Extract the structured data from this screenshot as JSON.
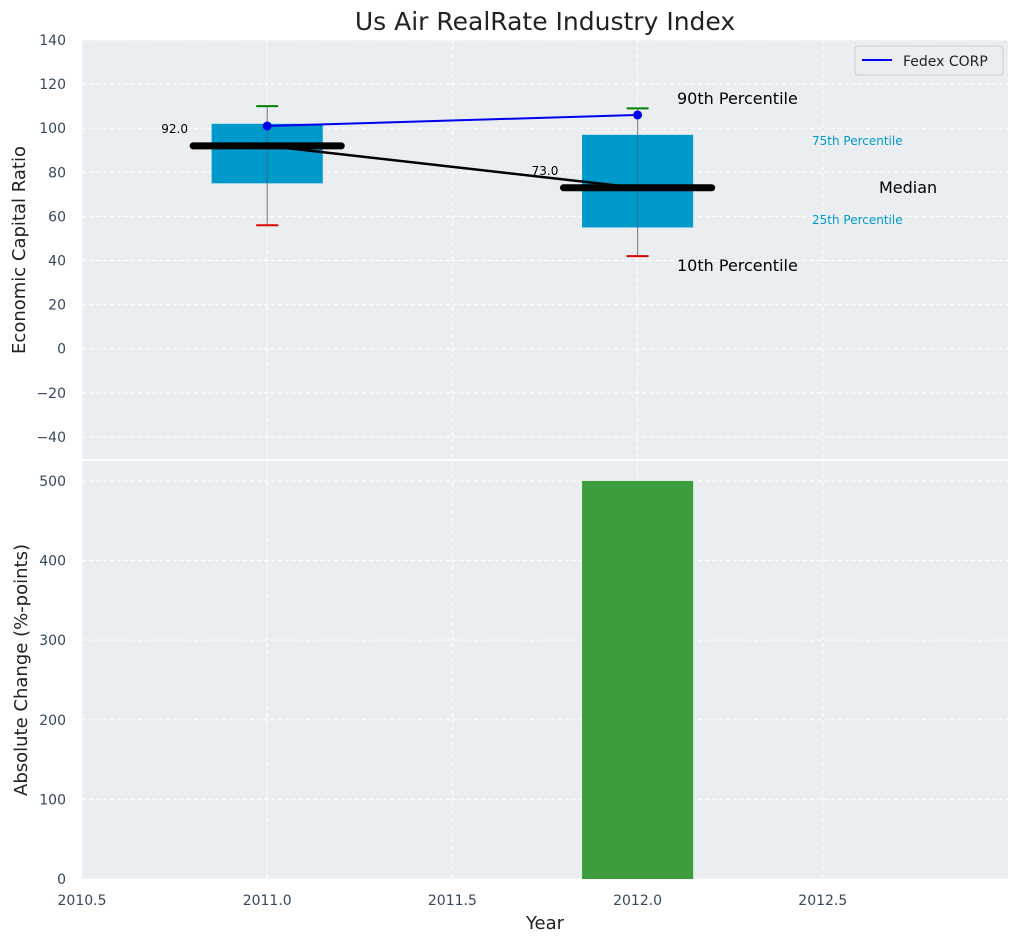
{
  "chart_data": [
    {
      "type": "box",
      "title": "Us Air RealRate Industry Index",
      "ylabel": "Economic Capital Ratio",
      "ylim": [
        -50,
        140
      ],
      "yticks": [
        -40,
        -20,
        0,
        20,
        40,
        60,
        80,
        100,
        120,
        140
      ],
      "xlim": [
        2010.5,
        2013.0
      ],
      "grid": true,
      "legend_position": "top-right",
      "boxes": [
        {
          "year": 2011,
          "p10": 56,
          "p25": 75,
          "median": 92,
          "p75": 102,
          "p90": 110,
          "median_label": "92.0"
        },
        {
          "year": 2012,
          "p10": 42,
          "p25": 55,
          "median": 73,
          "p75": 97,
          "p90": 109,
          "median_label": "73.0"
        }
      ],
      "series": [
        {
          "name": "Fedex CORP",
          "x": [
            2011,
            2012
          ],
          "values": [
            101,
            106
          ],
          "color": "#0000ee"
        }
      ],
      "median_line": {
        "x": [
          2011,
          2012
        ],
        "values": [
          92,
          73
        ]
      },
      "annotations": {
        "p90": "90th Percentile",
        "p75": "75th Percentile",
        "median": "Median",
        "p25": "25th Percentile",
        "p10": "10th Percentile"
      },
      "colors": {
        "box": "#0099cc",
        "p90_whisker": "#008000",
        "p10_whisker": "#dd0000",
        "median": "#000000",
        "background": "#eaeef0"
      }
    },
    {
      "type": "bar",
      "ylabel": "Absolute Change (%-points)",
      "xlabel": "Year",
      "ylim": [
        0,
        525
      ],
      "yticks": [
        0,
        100,
        200,
        300,
        400,
        500
      ],
      "xlim": [
        2010.5,
        2013.0
      ],
      "xticks": [
        "2010.5",
        "2011.0",
        "2011.5",
        "2012.0",
        "2012.5"
      ],
      "grid": true,
      "bars": [
        {
          "x": 2012,
          "value": 500
        }
      ],
      "colors": {
        "bar": "#3d9c3d"
      }
    }
  ]
}
